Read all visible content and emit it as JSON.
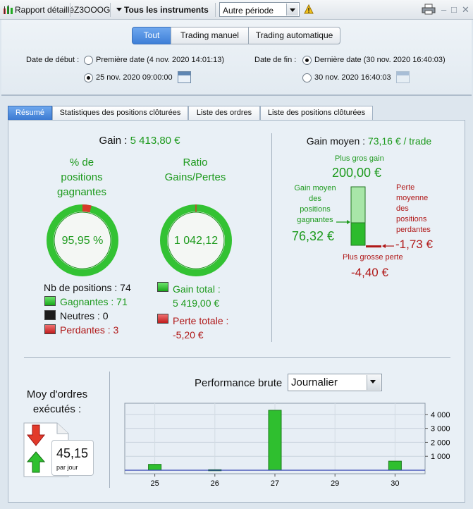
{
  "toolbar": {
    "report_label": "Rapport détaillé",
    "account": "Z3OOOG",
    "instruments_label": "Tous les instruments",
    "period_value": "Autre période"
  },
  "mode_tabs": [
    "Tout",
    "Trading manuel",
    "Trading automatique"
  ],
  "dates": {
    "start_label": "Date de début :",
    "start_opt1": "Première date (4 nov. 2020 14:01:13)",
    "start_opt2": "25 nov. 2020 09:00:00",
    "end_label": "Date de fin :",
    "end_opt1": "Dernière date (30 nov. 2020 16:40:03)",
    "end_opt2": "30 nov. 2020 16:40:03"
  },
  "tabs": [
    "Résumé",
    "Statistiques des positions clôturées",
    "Liste des ordres",
    "Liste des positions clôturées"
  ],
  "summary": {
    "gain_label": "Gain :",
    "gain_value": "5 413,80 €",
    "pct_title_1": "% de",
    "pct_title_2": "positions",
    "pct_title_3": "gagnantes",
    "pct_value": "95,95 %",
    "pct_fraction": 0.9595,
    "ratio_title_1": "Ratio",
    "ratio_title_2": "Gains/Pertes",
    "ratio_value": "1 042,12",
    "nb_positions": "Nb de positions : 74",
    "winners": "Gagnantes : 71",
    "neutral": "Neutres : 0",
    "losers": "Perdantes : 3",
    "total_gain_1": "Gain total :",
    "total_gain_2": "5 419,00 €",
    "total_loss_1": "Perte totale :",
    "total_loss_2": "-5,20 €"
  },
  "avg": {
    "label": "Gain moyen :",
    "value": "73,16 € / trade",
    "max_gain_label": "Plus gros gain",
    "max_gain": "200,00 €",
    "avg_win_label": [
      "Gain moyen",
      "des",
      "positions",
      "gagnantes"
    ],
    "avg_win": "76,32 €",
    "avg_loss_label": [
      "Perte",
      "moyenne",
      "des",
      "positions",
      "perdantes"
    ],
    "avg_loss": "-1,73 €",
    "max_loss_label": "Plus grosse perte",
    "max_loss": "-4,40 €"
  },
  "orders": {
    "title_1": "Moy d'ordres",
    "title_2": "exécutés :",
    "value": "45,15",
    "unit": "par jour"
  },
  "perf": {
    "title": "Performance brute",
    "period": "Journalier"
  },
  "chart_data": {
    "type": "bar",
    "categories": [
      "25",
      "26",
      "27",
      "29",
      "30"
    ],
    "values": [
      420,
      40,
      4300,
      0,
      650
    ],
    "ylim": [
      0,
      4600
    ],
    "yticks": [
      "1 000",
      "2 000",
      "3 000",
      "4 000"
    ],
    "ytick_values": [
      1000,
      2000,
      3000,
      4000
    ],
    "grid": true
  }
}
